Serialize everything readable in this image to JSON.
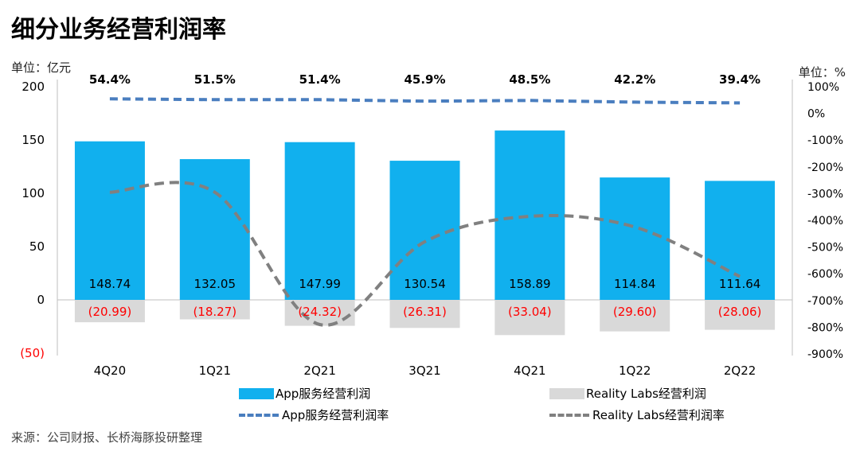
{
  "title": "细分业务经营利润率",
  "unit_left": "单位：亿元",
  "unit_right": "单位：%",
  "source": "来源：公司财报、长桥海豚投研整理",
  "colors": {
    "app_bar": "#11b0ee",
    "rl_bar": "#d9d9d9",
    "app_margin": "#4a7ebf",
    "rl_margin": "#808080",
    "negative_label": "#ff0000"
  },
  "chart_data": {
    "type": "bar",
    "categories": [
      "4Q20",
      "1Q21",
      "2Q21",
      "3Q21",
      "4Q21",
      "1Q22",
      "2Q22"
    ],
    "series": [
      {
        "name": "App服务经营利润",
        "axis": "left",
        "type": "bar",
        "values": [
          148.74,
          132.05,
          147.99,
          130.54,
          158.89,
          114.84,
          111.64
        ],
        "labels": [
          "148.74",
          "132.05",
          "147.99",
          "130.54",
          "158.89",
          "114.84",
          "111.64"
        ]
      },
      {
        "name": "Reality Labs经营利润",
        "axis": "left",
        "type": "bar",
        "values": [
          -20.99,
          -18.27,
          -24.32,
          -26.31,
          -33.04,
          -29.6,
          -28.06
        ],
        "labels": [
          "(20.99)",
          "(18.27)",
          "(24.32)",
          "(26.31)",
          "(33.04)",
          "(29.60)",
          "(28.06)"
        ]
      },
      {
        "name": "App服务经营利润率",
        "axis": "right",
        "type": "line",
        "values": [
          54.4,
          51.5,
          51.4,
          45.9,
          48.5,
          42.2,
          39.4
        ],
        "labels": [
          "54.4%",
          "51.5%",
          "51.4%",
          "45.9%",
          "48.5%",
          "42.2%",
          "39.4%"
        ]
      },
      {
        "name": "Reality Labs经营利润率",
        "axis": "right",
        "type": "line",
        "values": [
          -295,
          -295,
          -790,
          -480,
          -385,
          -425,
          -610
        ]
      }
    ],
    "left_axis": {
      "ylim": [
        -50,
        200
      ],
      "ticks": [
        "(50)",
        "0",
        "50",
        "100",
        "150",
        "200"
      ]
    },
    "right_axis": {
      "ylim": [
        -900,
        100
      ],
      "ticks": [
        "100%",
        "0%",
        "-100%",
        "-200%",
        "-300%",
        "-400%",
        "-500%",
        "-600%",
        "-700%",
        "-800%",
        "-900%"
      ]
    },
    "legend_placement": "bottom"
  }
}
